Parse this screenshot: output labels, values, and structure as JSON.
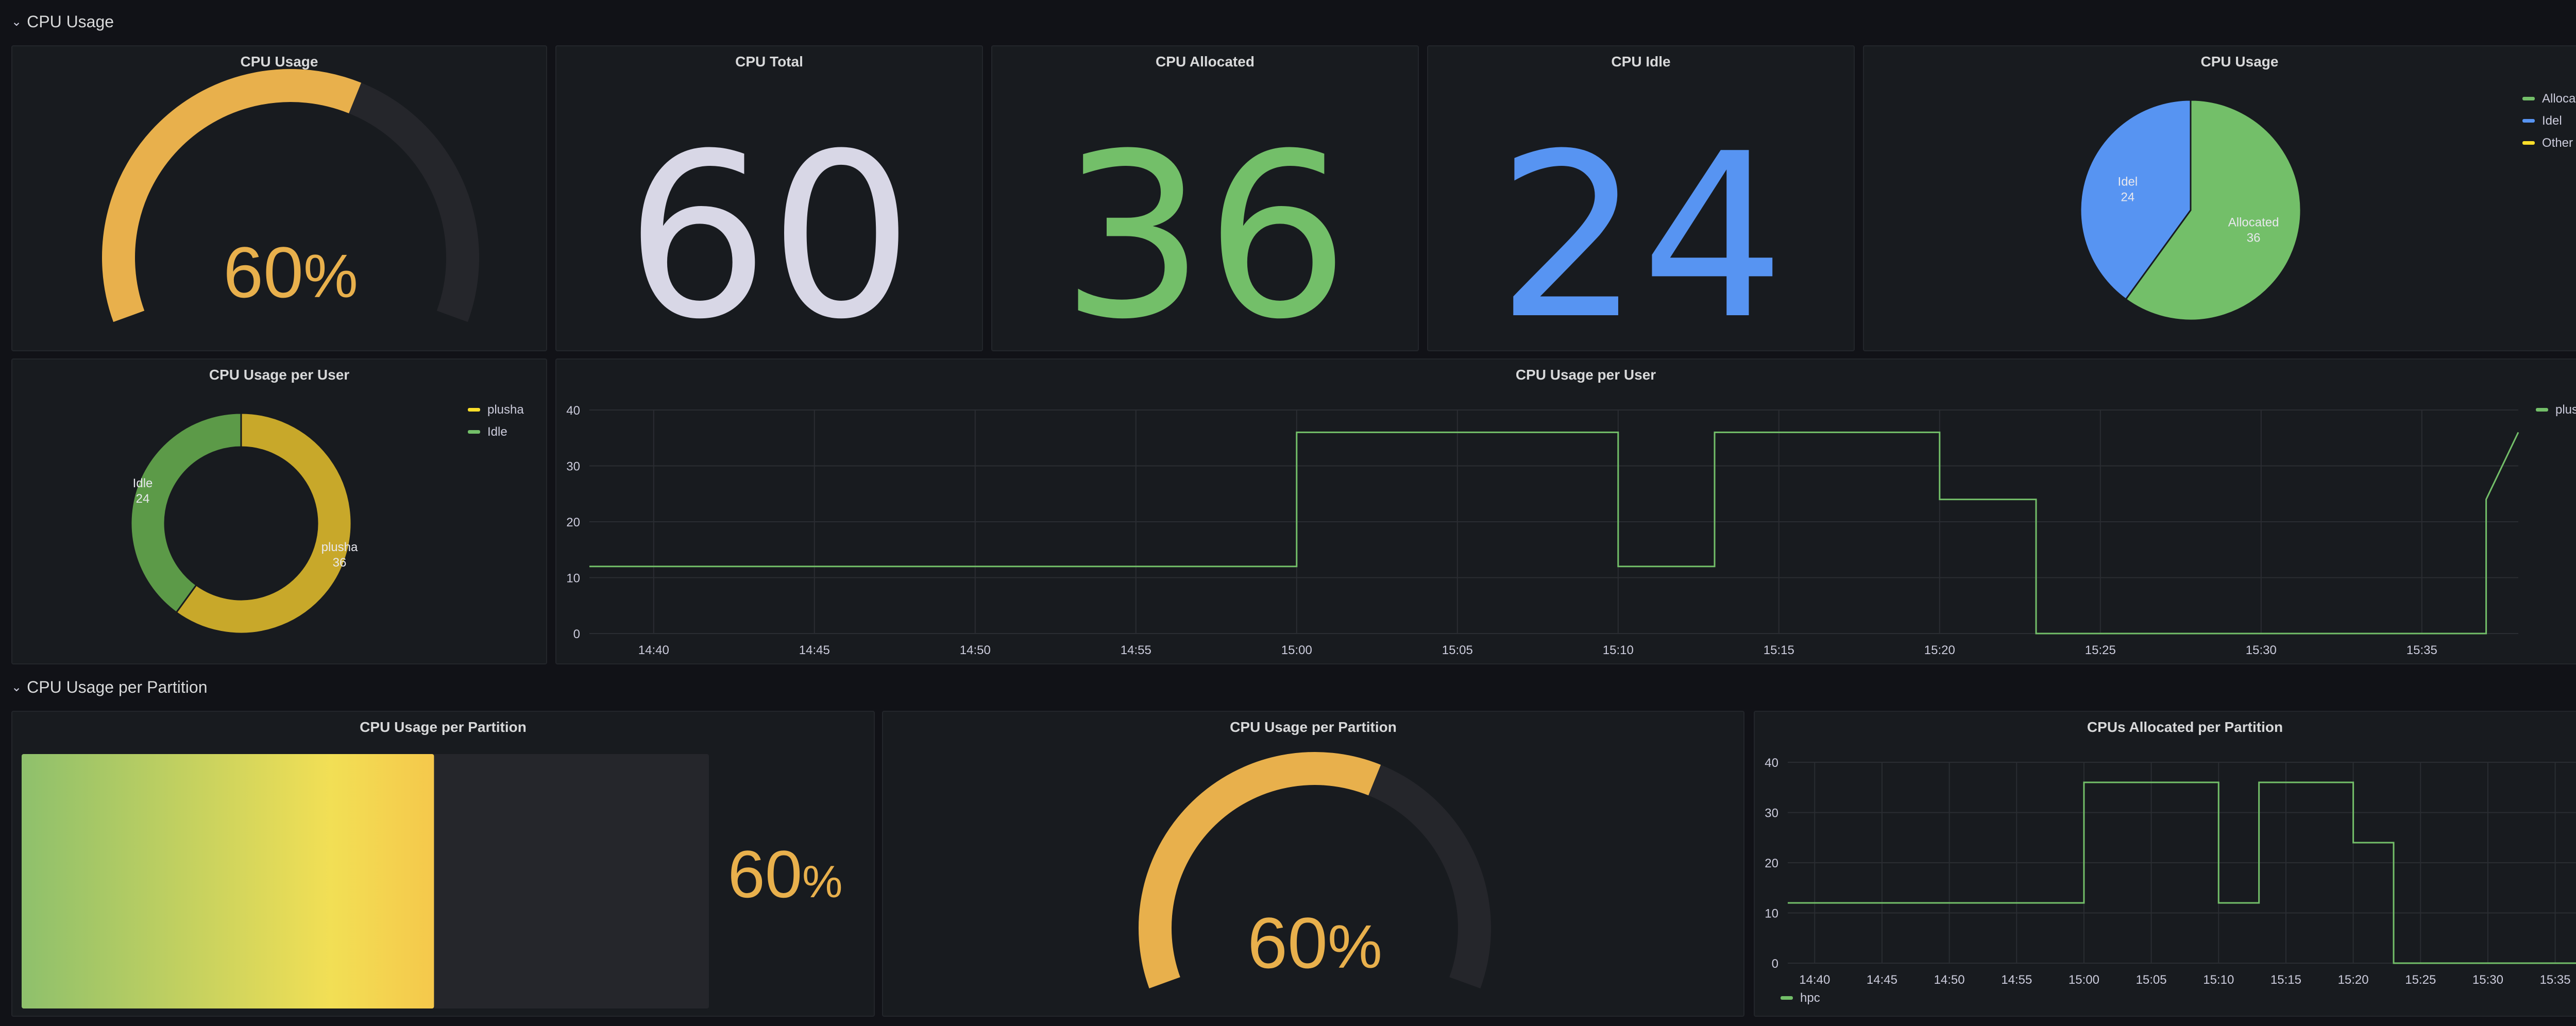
{
  "rows": [
    {
      "title": "CPU Usage"
    },
    {
      "title": "CPU Usage per Partition"
    }
  ],
  "panels": {
    "gauge1": {
      "title": "CPU Usage",
      "value": 60,
      "unit": "%",
      "display": "60",
      "color": "#e8b04c"
    },
    "cpu_total": {
      "title": "CPU Total",
      "value": "60",
      "color": "#d8d7e6"
    },
    "cpu_allocated": {
      "title": "CPU Allocated",
      "value": "36",
      "color": "#73bf69"
    },
    "cpu_idle": {
      "title": "CPU Idle",
      "value": "24",
      "color": "#5794f2"
    },
    "pie": {
      "title": "CPU Usage",
      "legend": [
        {
          "label": "Allocated",
          "color": "#73bf69"
        },
        {
          "label": "Idel",
          "color": "#5794f2"
        },
        {
          "label": "Other",
          "color": "#fade2a"
        }
      ]
    },
    "donut": {
      "title": "CPU Usage per User",
      "legend": [
        {
          "label": "plusha",
          "color": "#fade2a"
        },
        {
          "label": "Idle",
          "color": "#73bf69"
        }
      ]
    },
    "ts_user": {
      "title": "CPU Usage per User",
      "legend": [
        {
          "label": "plusha",
          "color": "#73bf69"
        }
      ]
    },
    "bar_gauge": {
      "title": "CPU Usage per Partition",
      "value": 60,
      "display": "60",
      "unit": "%"
    },
    "gauge2": {
      "title": "CPU Usage per Partition",
      "value": 60,
      "unit": "%",
      "display": "60",
      "color": "#e8b04c"
    },
    "ts_partition": {
      "title": "CPUs Allocated per Partition",
      "legend": [
        {
          "label": "hpc",
          "color": "#73bf69"
        }
      ]
    }
  },
  "chart_data": [
    {
      "type": "pie",
      "title": "CPU Usage",
      "slices": [
        {
          "label": "Allocated",
          "value": 36,
          "color": "#73bf69"
        },
        {
          "label": "Idel",
          "value": 24,
          "color": "#5794f2"
        },
        {
          "label": "Other",
          "value": 0,
          "color": "#fade2a"
        }
      ]
    },
    {
      "type": "pie",
      "title": "CPU Usage per User",
      "donut": true,
      "slices": [
        {
          "label": "plusha",
          "value": 36,
          "color": "#c8a82a"
        },
        {
          "label": "Idle",
          "value": 24,
          "color": "#5c9a48"
        }
      ]
    },
    {
      "type": "line",
      "title": "CPU Usage per User",
      "x_ticks": [
        "14:40",
        "14:45",
        "14:50",
        "14:55",
        "15:00",
        "15:05",
        "15:10",
        "15:15",
        "15:20",
        "15:25",
        "15:30",
        "15:35"
      ],
      "xlim": [
        "14:38",
        "15:38"
      ],
      "ylim": [
        0,
        40
      ],
      "y_ticks": [
        0,
        10,
        20,
        30,
        40
      ],
      "series": [
        {
          "name": "plusha",
          "color": "#73bf69",
          "points": [
            [
              "14:38",
              12
            ],
            [
              "15:00",
              12
            ],
            [
              "15:00",
              36
            ],
            [
              "15:10",
              36
            ],
            [
              "15:10",
              12
            ],
            [
              "15:13",
              12
            ],
            [
              "15:13",
              36
            ],
            [
              "15:20",
              36
            ],
            [
              "15:20",
              24
            ],
            [
              "15:23",
              24
            ],
            [
              "15:23",
              0
            ],
            [
              "15:37",
              0
            ],
            [
              "15:37",
              24
            ],
            [
              "15:37",
              24
            ],
            [
              "15:38",
              36
            ]
          ]
        }
      ]
    },
    {
      "type": "line",
      "title": "CPUs Allocated per Partition",
      "x_ticks": [
        "14:40",
        "14:45",
        "14:50",
        "14:55",
        "15:00",
        "15:05",
        "15:10",
        "15:15",
        "15:20",
        "15:25",
        "15:30",
        "15:35"
      ],
      "xlim": [
        "14:38",
        "15:38"
      ],
      "ylim": [
        0,
        40
      ],
      "y_ticks": [
        0,
        10,
        20,
        30,
        40
      ],
      "series": [
        {
          "name": "hpc",
          "color": "#73bf69",
          "points": [
            [
              "14:38",
              12
            ],
            [
              "15:00",
              12
            ],
            [
              "15:00",
              36
            ],
            [
              "15:10",
              36
            ],
            [
              "15:10",
              12
            ],
            [
              "15:13",
              12
            ],
            [
              "15:13",
              36
            ],
            [
              "15:20",
              36
            ],
            [
              "15:20",
              24
            ],
            [
              "15:23",
              24
            ],
            [
              "15:23",
              0
            ],
            [
              "15:37",
              0
            ],
            [
              "15:37",
              24
            ],
            [
              "15:37",
              24
            ],
            [
              "15:38",
              36
            ]
          ]
        }
      ]
    }
  ]
}
